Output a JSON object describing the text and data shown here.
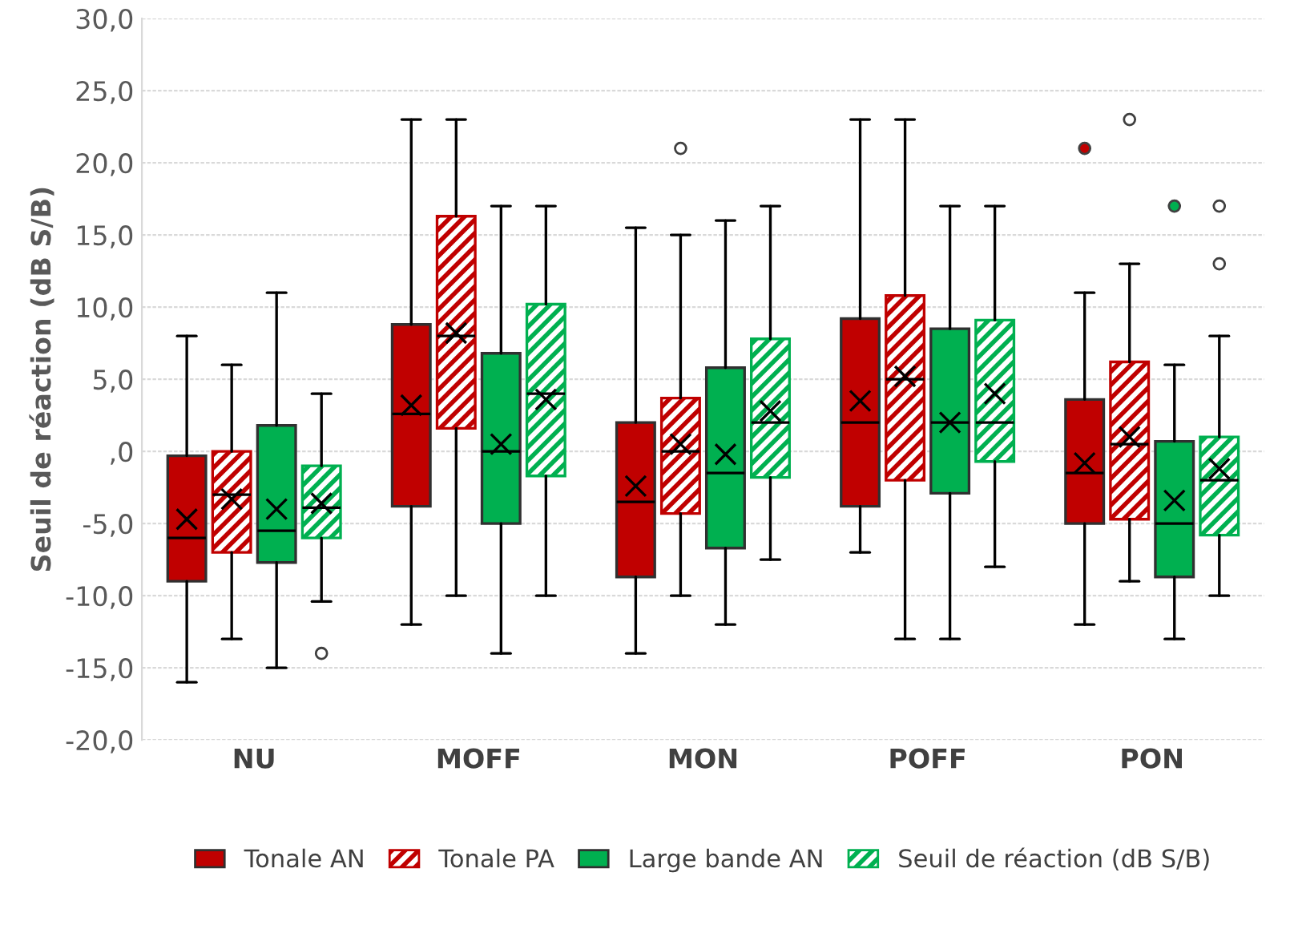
{
  "chart_data": {
    "type": "box",
    "ylabel": "Seuil de réaction (dB S/B)",
    "categories": [
      "NU",
      "MOFF",
      "MON",
      "POFF",
      "PON"
    ],
    "ylim": [
      -20,
      30
    ],
    "yticks": [
      {
        "value": -20,
        "label": "-20,0"
      },
      {
        "value": -15,
        "label": "-15,0"
      },
      {
        "value": -10,
        "label": "-10,0"
      },
      {
        "value": -5,
        "label": "-5,0"
      },
      {
        "value": 0,
        "label": ",0"
      },
      {
        "value": 5,
        "label": "5,0"
      },
      {
        "value": 10,
        "label": "10,0"
      },
      {
        "value": 15,
        "label": "15,0"
      },
      {
        "value": 20,
        "label": "20,0"
      },
      {
        "value": 25,
        "label": "25,0"
      },
      {
        "value": 30,
        "label": "30,0"
      }
    ],
    "grid": "y",
    "legend": "bottom",
    "series": [
      {
        "name": "Tonale AN",
        "color": "#c00000",
        "boxes": [
          {
            "low": -16,
            "q1": -9,
            "median": -6,
            "q3": -0.3,
            "high": 8,
            "mean": -4.7
          },
          {
            "low": -12,
            "q1": -3.8,
            "median": 2.6,
            "q3": 8.8,
            "high": 23,
            "mean": 3.2
          },
          {
            "low": -14,
            "q1": -8.7,
            "median": -3.5,
            "q3": 2,
            "high": 15.5,
            "mean": -2.4
          },
          {
            "low": -7,
            "q1": -3.8,
            "median": 2,
            "q3": 9.2,
            "high": 23,
            "mean": 3.5
          },
          {
            "low": -12,
            "q1": -5,
            "median": -1.5,
            "q3": 3.6,
            "high": 11,
            "mean": -0.8,
            "outliers": [
              21
            ]
          }
        ]
      },
      {
        "name": "Tonale PA",
        "color": "#c00000",
        "boxes": [
          {
            "low": -13,
            "q1": -7,
            "median": -3,
            "q3": 0,
            "high": 6,
            "mean": -3.3
          },
          {
            "low": -10,
            "q1": 1.6,
            "median": 8,
            "q3": 16.3,
            "high": 23,
            "mean": 8.2
          },
          {
            "low": -10,
            "q1": -4.3,
            "median": 0,
            "q3": 3.7,
            "high": 15,
            "mean": 0.5,
            "outliers": [
              21
            ]
          },
          {
            "low": -13,
            "q1": -2,
            "median": 5,
            "q3": 10.8,
            "high": 23,
            "mean": 5.2
          },
          {
            "low": -9,
            "q1": -4.7,
            "median": 0.5,
            "q3": 6.2,
            "high": 13,
            "mean": 1,
            "outliers": [
              23
            ]
          }
        ]
      },
      {
        "name": "Large bande AN",
        "color": "#00b050",
        "boxes": [
          {
            "low": -15,
            "q1": -7.7,
            "median": -5.5,
            "q3": 1.8,
            "high": 11,
            "mean": -4
          },
          {
            "low": -14,
            "q1": -5,
            "median": 0,
            "q3": 6.8,
            "high": 17,
            "mean": 0.5
          },
          {
            "low": -12,
            "q1": -6.7,
            "median": -1.5,
            "q3": 5.8,
            "high": 16,
            "mean": -0.2
          },
          {
            "low": -13,
            "q1": -2.9,
            "median": 2,
            "q3": 8.5,
            "high": 17,
            "mean": 2
          },
          {
            "low": -13,
            "q1": -8.7,
            "median": -5,
            "q3": 0.7,
            "high": 6,
            "mean": -3.4,
            "outliers": [
              17
            ]
          }
        ]
      },
      {
        "name": "Seuil de réaction (dB S/B)",
        "color": "#00b050",
        "boxes": [
          {
            "low": -10.4,
            "q1": -6,
            "median": -3.9,
            "q3": -1,
            "high": 4,
            "mean": -3.6,
            "outliers": [
              -14
            ]
          },
          {
            "low": -10,
            "q1": -1.7,
            "median": 4,
            "q3": 10.2,
            "high": 17,
            "mean": 3.6
          },
          {
            "low": -7.5,
            "q1": -1.8,
            "median": 2,
            "q3": 7.8,
            "high": 17,
            "mean": 2.8
          },
          {
            "low": -8,
            "q1": -0.7,
            "median": 2,
            "q3": 9.1,
            "high": 17,
            "mean": 4
          },
          {
            "low": -10,
            "q1": -5.8,
            "median": -2,
            "q3": 1,
            "high": 8,
            "mean": -1.2,
            "outliers": [
              17,
              13
            ]
          }
        ]
      }
    ]
  }
}
